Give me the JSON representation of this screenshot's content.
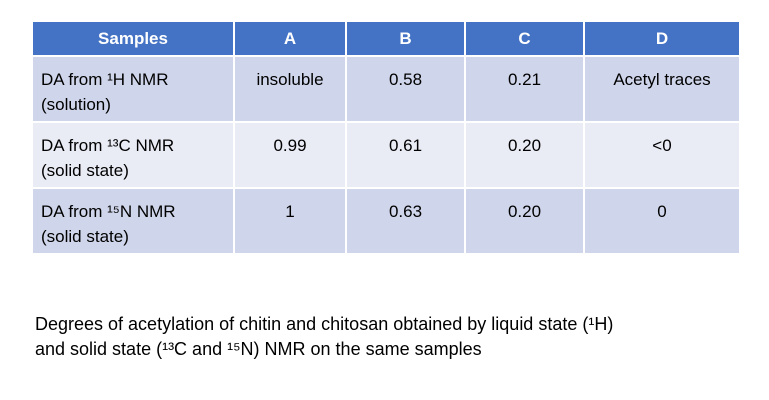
{
  "table": {
    "header": [
      "Samples",
      "A",
      "B",
      "C",
      "D"
    ],
    "rows": [
      {
        "label": [
          "DA from ¹H NMR",
          "(solution)"
        ],
        "cells": [
          "insoluble",
          "0.58",
          "0.21",
          "Acetyl traces"
        ]
      },
      {
        "label": [
          "DA from ¹³C NMR",
          "(solid state)"
        ],
        "cells": [
          "0.99",
          "0.61",
          "0.20",
          "<0"
        ]
      },
      {
        "label": [
          "DA from ¹⁵N NMR",
          "(solid state)"
        ],
        "cells": [
          "1",
          "0.63",
          "0.20",
          "0"
        ]
      }
    ]
  },
  "caption": [
    "Degrees of acetylation of chitin and chitosan obtained by liquid state (¹H)",
    "and solid state (¹³C and ¹⁵N) NMR on the same samples"
  ]
}
